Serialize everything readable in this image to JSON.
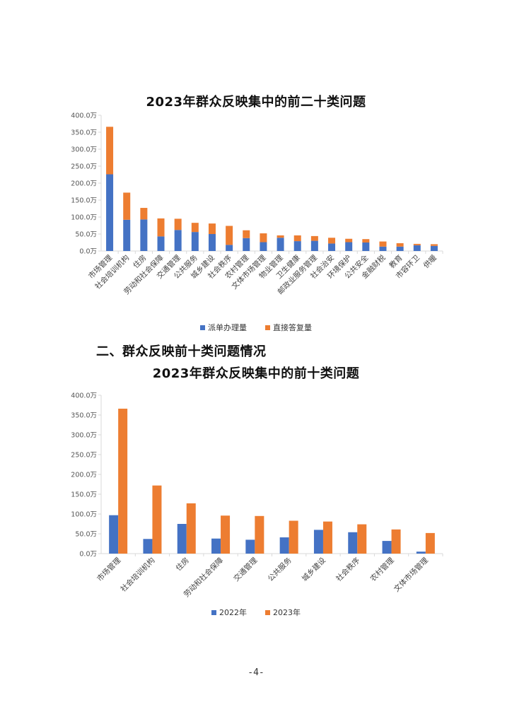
{
  "section_heading": "二、群众反映前十类问题情况",
  "page_number": "-4-",
  "colors": {
    "blue": "#4472C4",
    "orange": "#ED7D31",
    "axis": "#D9D9D9"
  },
  "chart_data": [
    {
      "type": "bar",
      "stacked": true,
      "title": "2023年群众反映集中的前二十类问题",
      "categories": [
        "市场管理",
        "社会培训机构",
        "住房",
        "劳动和社会保障",
        "交通管理",
        "公共服务",
        "城乡建设",
        "社会秩序",
        "农村管理",
        "文体市场管理",
        "物业管理",
        "卫生健康",
        "邮政业服务管理",
        "社会治安",
        "环境保护",
        "公共安全",
        "金融财税",
        "教育",
        "市容环卫",
        "供暖"
      ],
      "series": [
        {
          "name": "派单办理量",
          "values": [
            226,
            92,
            93,
            43,
            62,
            56,
            50,
            18,
            38,
            26,
            39,
            29,
            30,
            22,
            26,
            25,
            13,
            13,
            17,
            15
          ]
        },
        {
          "name": "直接答复量",
          "values": [
            140,
            80,
            34,
            53,
            33,
            27,
            31,
            56,
            23,
            26,
            7,
            17,
            14,
            17,
            10,
            10,
            15,
            10,
            4,
            5
          ]
        }
      ],
      "ylim": [
        0,
        400
      ],
      "yticks": [
        "0.0万",
        "50.0万",
        "100.0万",
        "150.0万",
        "200.0万",
        "250.0万",
        "300.0万",
        "350.0万",
        "400.0万"
      ],
      "legend_position": "bottom"
    },
    {
      "type": "bar",
      "stacked": false,
      "title": "2023年群众反映集中的前十类问题",
      "categories": [
        "市场管理",
        "社会培训机构",
        "住房",
        "劳动和社会保障",
        "交通管理",
        "公共服务",
        "城乡建设",
        "社会秩序",
        "农村管理",
        "文体市场管理"
      ],
      "series": [
        {
          "name": "2022年",
          "values": [
            97,
            37,
            75,
            38,
            35,
            41,
            60,
            54,
            32,
            5
          ]
        },
        {
          "name": "2023年",
          "values": [
            366,
            172,
            127,
            96,
            95,
            83,
            81,
            74,
            61,
            52
          ]
        }
      ],
      "ylim": [
        0,
        400
      ],
      "yticks": [
        "0.0万",
        "50.0万",
        "100.0万",
        "150.0万",
        "200.0万",
        "250.0万",
        "300.0万",
        "350.0万",
        "400.0万"
      ],
      "legend_position": "bottom"
    }
  ]
}
